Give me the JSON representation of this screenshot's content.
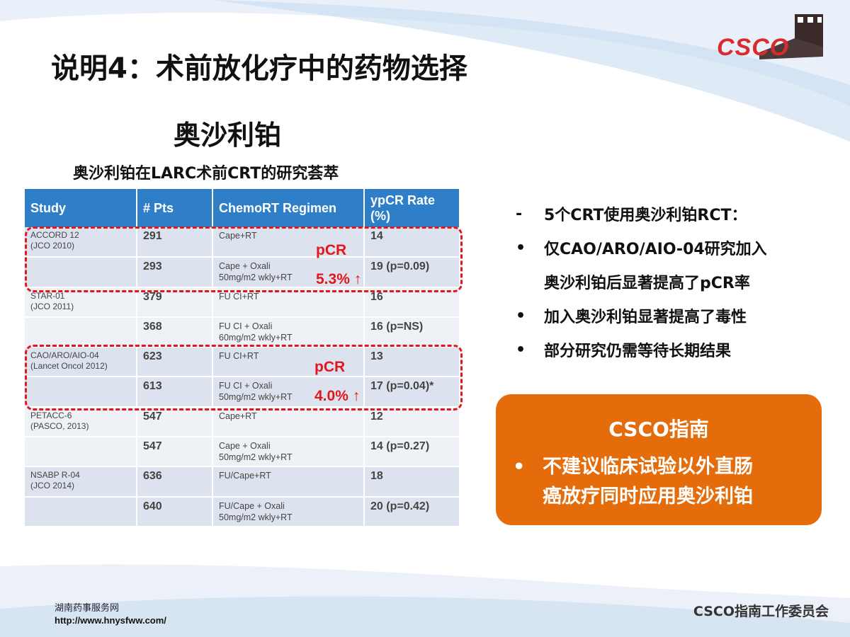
{
  "slide": {
    "title": "说明4：术前放化疗中的药物选择",
    "subtitle": "奥沙利铂",
    "table_caption": "奥沙利铂在LARC术前CRT的研究荟萃"
  },
  "table": {
    "headers": [
      "Study",
      "# Pts",
      "ChemoRT Regimen",
      "ypCR Rate\n(%)"
    ],
    "rows": [
      {
        "study": "ACCORD 12\n(JCO 2010)",
        "pts": "291",
        "regimen": "Cape+RT",
        "rate": "14"
      },
      {
        "study": "",
        "pts": "293",
        "regimen": "Cape + Oxali\n50mg/m2 wkly+RT",
        "rate": "19 (p=0.09)"
      },
      {
        "study": "STAR-01\n(JCO 2011)",
        "pts": "379",
        "regimen": "FU CI+RT",
        "rate": "16"
      },
      {
        "study": "",
        "pts": "368",
        "regimen": "FU CI + Oxali\n60mg/m2 wkly+RT",
        "rate": "16 (p=NS)"
      },
      {
        "study": "CAO/ARO/AIO-04\n(Lancet Oncol 2012)",
        "pts": "623",
        "regimen": "FU CI+RT",
        "rate": "13"
      },
      {
        "study": "",
        "pts": "613",
        "regimen": "FU CI + Oxali\n50mg/m2 wkly+RT",
        "rate": "17 (p=0.04)*"
      },
      {
        "study": "PETACC-6\n(PASCO, 2013)",
        "pts": "547",
        "regimen": "Cape+RT",
        "rate": "12"
      },
      {
        "study": "",
        "pts": "547",
        "regimen": "Cape + Oxali\n50mg/m2 wkly+RT",
        "rate": "14 (p=0.27)"
      },
      {
        "study": "NSABP R-04\n(JCO 2014)",
        "pts": "636",
        "regimen": "FU/Cape+RT",
        "rate": "18"
      },
      {
        "study": "",
        "pts": "640",
        "regimen": "FU/Cape + Oxali\n50mg/m2 wkly+RT",
        "rate": "20 (p=0.42)"
      }
    ]
  },
  "annotations": [
    {
      "label": "pCR",
      "value": "5.3% ↑"
    },
    {
      "label": "pCR",
      "value": "4.0% ↑"
    }
  ],
  "bullets": {
    "dash_mark": "-",
    "dot_mark": "•",
    "items": [
      {
        "mark": "-",
        "text": "5个CRT使用奥沙利铂RCT："
      },
      {
        "mark": "•",
        "text": "仅CAO/ARO/AIO-04研究加入"
      },
      {
        "mark": "",
        "text": "奥沙利铂后显著提高了pCR率"
      },
      {
        "mark": "•",
        "text": "加入奥沙利铂显著提高了毒性"
      },
      {
        "mark": "•",
        "text": "部分研究仍需等待长期结果"
      }
    ]
  },
  "csco_box": {
    "title": "CSCO指南",
    "mark": "•",
    "text_line1": "不建议临床试验以外直肠",
    "text_line2": "癌放疗同时应用奥沙利铂",
    "color": "#e46c0a"
  },
  "footer": {
    "site_name": "湖南药事服务网",
    "url": "http://www.hnysfww.com/",
    "committee": "CSCO指南工作委员会"
  },
  "logo": {
    "text": "CSCO",
    "icon": "great-wall-icon"
  },
  "colors": {
    "header_blue": "#2f7fc8",
    "highlight_red": "#e3161b",
    "accent_orange": "#e46c0a"
  }
}
